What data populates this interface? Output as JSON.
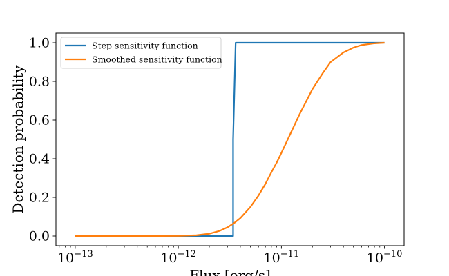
{
  "chart_data": {
    "type": "line",
    "xscale": "log",
    "xlim": [
      6.5e-14,
      1.55e-10
    ],
    "ylim": [
      -0.05,
      1.05
    ],
    "xlabel": "Flux [erg/s]",
    "ylabel": "Detection probability",
    "x_ticks": [
      {
        "value": 1e-13,
        "base": "10",
        "exp": "−13"
      },
      {
        "value": 1e-12,
        "base": "10",
        "exp": "−12"
      },
      {
        "value": 1e-11,
        "base": "10",
        "exp": "−11"
      },
      {
        "value": 1e-10,
        "base": "10",
        "exp": "−10"
      }
    ],
    "y_ticks": [
      {
        "value": 0.0,
        "label": "0.0"
      },
      {
        "value": 0.2,
        "label": "0.2"
      },
      {
        "value": 0.4,
        "label": "0.4"
      },
      {
        "value": 0.6,
        "label": "0.6"
      },
      {
        "value": 0.8,
        "label": "0.8"
      },
      {
        "value": 1.0,
        "label": "1.0"
      }
    ],
    "legend_position": "top-left",
    "grid": false,
    "series": [
      {
        "name": "Step sensitivity function",
        "color": "#1f77b4",
        "x": [
          1e-13,
          3.4e-12,
          3.4e-12,
          3.6e-12,
          3.6e-12,
          1e-10
        ],
        "y": [
          0,
          0,
          0.5,
          1.0,
          1.0,
          1.0
        ]
      },
      {
        "name": "Smoothed sensitivity function",
        "color": "#ff7f0e",
        "x": [
          1e-13,
          5e-13,
          1e-12,
          1.5e-12,
          2e-12,
          2.5e-12,
          3e-12,
          3.5e-12,
          4e-12,
          5e-12,
          6e-12,
          7e-12,
          8e-12,
          9e-12,
          1e-11,
          1.2e-11,
          1.5e-11,
          2e-11,
          2.5e-11,
          3e-11,
          4e-11,
          5e-11,
          6e-11,
          8e-11,
          1e-10
        ],
        "y": [
          0,
          0,
          0.001,
          0.004,
          0.012,
          0.026,
          0.045,
          0.068,
          0.093,
          0.15,
          0.21,
          0.27,
          0.33,
          0.38,
          0.43,
          0.52,
          0.63,
          0.76,
          0.84,
          0.9,
          0.95,
          0.975,
          0.988,
          0.997,
          1.0
        ]
      }
    ]
  }
}
